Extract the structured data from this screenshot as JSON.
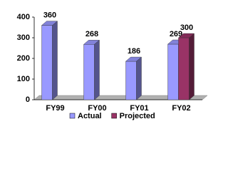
{
  "chart_data": {
    "type": "bar3d",
    "categories": [
      "FY99",
      "FY00",
      "FY01",
      "FY02"
    ],
    "series": [
      {
        "name": "Actual",
        "color": "#9999ff",
        "values": [
          360,
          268,
          186,
          269
        ]
      },
      {
        "name": "Projected",
        "color": "#993366",
        "values": [
          null,
          null,
          null,
          300
        ]
      }
    ],
    "ylim": [
      0,
      400
    ],
    "yticks": [
      0,
      100,
      200,
      300,
      400
    ],
    "legend": "bottom"
  }
}
